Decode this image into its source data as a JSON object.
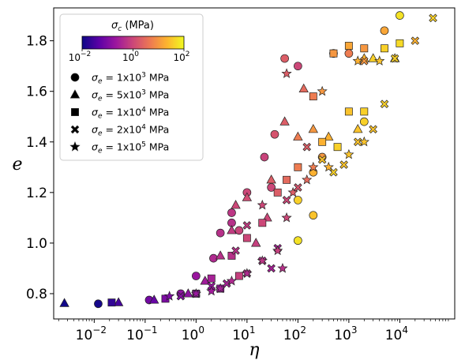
{
  "chart_data": {
    "type": "scatter",
    "title": "",
    "xlabel": "η",
    "ylabel": "e",
    "xscale": "log",
    "xlim": [
      0.0016,
      120000
    ],
    "ylim": [
      0.7,
      1.93
    ],
    "x_ticks": [
      {
        "value": 0.01,
        "label": "10",
        "exp": "−2"
      },
      {
        "value": 0.1,
        "label": "10",
        "exp": "−1"
      },
      {
        "value": 1,
        "label": "10",
        "exp": "0"
      },
      {
        "value": 10,
        "label": "10",
        "exp": "1"
      },
      {
        "value": 100,
        "label": "10",
        "exp": "2"
      },
      {
        "value": 1000,
        "label": "10",
        "exp": "3"
      },
      {
        "value": 10000,
        "label": "10",
        "exp": "4"
      }
    ],
    "y_ticks": [
      {
        "value": 0.8,
        "label": "0.8"
      },
      {
        "value": 1.0,
        "label": "1.0"
      },
      {
        "value": 1.2,
        "label": "1.2"
      },
      {
        "value": 1.4,
        "label": "1.4"
      },
      {
        "value": 1.6,
        "label": "1.6"
      },
      {
        "value": 1.8,
        "label": "1.8"
      }
    ],
    "grid": false,
    "legend_position": "top-left",
    "colorbar": {
      "title": "σ",
      "title_sub": "c",
      "title_unit": " (MPa)",
      "colormap": "plasma",
      "scale": "log",
      "range": [
        0.01,
        100
      ],
      "ticks": [
        {
          "value": 0.01,
          "label": "10",
          "exp": "−2"
        },
        {
          "value": 1,
          "label": "10",
          "exp": "0"
        },
        {
          "value": 100,
          "label": "10",
          "exp": "2"
        }
      ]
    },
    "colors": [
      "#0d0887",
      "#5c01a6",
      "#9c179e",
      "#cc4778",
      "#ed7953",
      "#fdb42f",
      "#f0f921"
    ],
    "series": [
      {
        "legend_prefix": "σ",
        "legend_sub": "e",
        "legend_value": " = 1x10",
        "legend_exp": "3",
        "legend_unit": " MPa",
        "marker": "circle",
        "points": [
          {
            "x": 0.012,
            "y": 0.76,
            "c": 0.012
          },
          {
            "x": 0.12,
            "y": 0.775,
            "c": 0.08
          },
          {
            "x": 0.5,
            "y": 0.8,
            "c": 0.15
          },
          {
            "x": 1,
            "y": 0.87,
            "c": 0.2
          },
          {
            "x": 2.2,
            "y": 0.94,
            "c": 0.4
          },
          {
            "x": 5,
            "y": 1.12,
            "c": 0.6
          },
          {
            "x": 7,
            "y": 1.05,
            "c": 0.9
          },
          {
            "x": 10,
            "y": 1.2,
            "c": 1
          },
          {
            "x": 5,
            "y": 1.08,
            "c": 0.5
          },
          {
            "x": 3,
            "y": 1.04,
            "c": 0.5
          },
          {
            "x": 22,
            "y": 1.34,
            "c": 0.9
          },
          {
            "x": 35,
            "y": 1.43,
            "c": 1.5
          },
          {
            "x": 55,
            "y": 1.73,
            "c": 2
          },
          {
            "x": 100,
            "y": 1.01,
            "c": 60
          },
          {
            "x": 100,
            "y": 1.17,
            "c": 40
          },
          {
            "x": 200,
            "y": 1.11,
            "c": 30
          },
          {
            "x": 200,
            "y": 1.28,
            "c": 20
          },
          {
            "x": 300,
            "y": 1.34,
            "c": 10
          },
          {
            "x": 500,
            "y": 1.75,
            "c": 5
          },
          {
            "x": 1000,
            "y": 1.75,
            "c": 5
          },
          {
            "x": 2000,
            "y": 1.48,
            "c": 40
          },
          {
            "x": 5000,
            "y": 1.84,
            "c": 15
          },
          {
            "x": 10000,
            "y": 1.9,
            "c": 60
          },
          {
            "x": 100,
            "y": 1.7,
            "c": 1
          },
          {
            "x": 30,
            "y": 1.22,
            "c": 1
          }
        ]
      },
      {
        "legend_prefix": "σ",
        "legend_sub": "e",
        "legend_value": " = 5x10",
        "legend_exp": "3",
        "legend_unit": " MPa",
        "marker": "triangle",
        "points": [
          {
            "x": 0.0026,
            "y": 0.762,
            "c": 0.011
          },
          {
            "x": 0.03,
            "y": 0.765,
            "c": 0.03
          },
          {
            "x": 0.15,
            "y": 0.775,
            "c": 0.06
          },
          {
            "x": 0.7,
            "y": 0.8,
            "c": 0.15
          },
          {
            "x": 1.5,
            "y": 0.85,
            "c": 0.25
          },
          {
            "x": 3,
            "y": 0.95,
            "c": 0.5
          },
          {
            "x": 5,
            "y": 1.05,
            "c": 0.7
          },
          {
            "x": 6,
            "y": 1.15,
            "c": 1
          },
          {
            "x": 10,
            "y": 1.18,
            "c": 1.2
          },
          {
            "x": 30,
            "y": 1.25,
            "c": 2
          },
          {
            "x": 55,
            "y": 1.48,
            "c": 2
          },
          {
            "x": 100,
            "y": 1.42,
            "c": 5
          },
          {
            "x": 130,
            "y": 1.61,
            "c": 3
          },
          {
            "x": 200,
            "y": 1.45,
            "c": 10
          },
          {
            "x": 400,
            "y": 1.42,
            "c": 20
          },
          {
            "x": 1500,
            "y": 1.45,
            "c": 30
          },
          {
            "x": 2000,
            "y": 1.73,
            "c": 20
          },
          {
            "x": 3000,
            "y": 1.73,
            "c": 40
          },
          {
            "x": 8000,
            "y": 1.73,
            "c": 30
          },
          {
            "x": 25,
            "y": 1.1,
            "c": 1
          },
          {
            "x": 15,
            "y": 1.0,
            "c": 0.8
          }
        ]
      },
      {
        "legend_prefix": "σ",
        "legend_sub": "e",
        "legend_value": " = 1x10",
        "legend_exp": "4",
        "legend_unit": " MPa",
        "marker": "square",
        "points": [
          {
            "x": 0.022,
            "y": 0.765,
            "c": 0.02
          },
          {
            "x": 0.25,
            "y": 0.78,
            "c": 0.1
          },
          {
            "x": 1,
            "y": 0.8,
            "c": 0.2
          },
          {
            "x": 2,
            "y": 0.86,
            "c": 0.3
          },
          {
            "x": 5,
            "y": 0.95,
            "c": 0.5
          },
          {
            "x": 10,
            "y": 1.02,
            "c": 1
          },
          {
            "x": 20,
            "y": 1.08,
            "c": 1
          },
          {
            "x": 40,
            "y": 1.2,
            "c": 2
          },
          {
            "x": 60,
            "y": 1.25,
            "c": 3
          },
          {
            "x": 100,
            "y": 1.3,
            "c": 5
          },
          {
            "x": 200,
            "y": 1.58,
            "c": 5
          },
          {
            "x": 300,
            "y": 1.4,
            "c": 20
          },
          {
            "x": 500,
            "y": 1.75,
            "c": 10
          },
          {
            "x": 1000,
            "y": 1.78,
            "c": 15
          },
          {
            "x": 2000,
            "y": 1.77,
            "c": 10
          },
          {
            "x": 2000,
            "y": 1.52,
            "c": 40
          },
          {
            "x": 10000,
            "y": 1.79,
            "c": 50
          },
          {
            "x": 5000,
            "y": 1.77,
            "c": 40
          },
          {
            "x": 1000,
            "y": 1.52,
            "c": 30
          },
          {
            "x": 600,
            "y": 1.38,
            "c": 40
          },
          {
            "x": 7,
            "y": 0.87,
            "c": 0.8
          },
          {
            "x": 3,
            "y": 0.82,
            "c": 0.2
          }
        ]
      },
      {
        "legend_prefix": "σ",
        "legend_sub": "e",
        "legend_value": " = 2x10",
        "legend_exp": "4",
        "legend_unit": " MPa",
        "marker": "x",
        "points": [
          {
            "x": 0.5,
            "y": 0.79,
            "c": 0.12
          },
          {
            "x": 1,
            "y": 0.8,
            "c": 0.15
          },
          {
            "x": 2,
            "y": 0.83,
            "c": 0.2
          },
          {
            "x": 4,
            "y": 0.84,
            "c": 0.3
          },
          {
            "x": 10,
            "y": 0.88,
            "c": 0.5
          },
          {
            "x": 20,
            "y": 0.93,
            "c": 0.4
          },
          {
            "x": 40,
            "y": 0.98,
            "c": 0.3
          },
          {
            "x": 60,
            "y": 1.17,
            "c": 1
          },
          {
            "x": 100,
            "y": 1.22,
            "c": 1.5
          },
          {
            "x": 150,
            "y": 1.38,
            "c": 2
          },
          {
            "x": 300,
            "y": 1.33,
            "c": 30
          },
          {
            "x": 500,
            "y": 1.28,
            "c": 40
          },
          {
            "x": 800,
            "y": 1.31,
            "c": 30
          },
          {
            "x": 1500,
            "y": 1.4,
            "c": 30
          },
          {
            "x": 3000,
            "y": 1.45,
            "c": 30
          },
          {
            "x": 5000,
            "y": 1.55,
            "c": 40
          },
          {
            "x": 20000,
            "y": 1.8,
            "c": 20
          },
          {
            "x": 45000,
            "y": 1.89,
            "c": 40
          },
          {
            "x": 8000,
            "y": 1.73,
            "c": 40
          },
          {
            "x": 2000,
            "y": 1.72,
            "c": 10
          },
          {
            "x": 10,
            "y": 1.07,
            "c": 0.7
          },
          {
            "x": 30,
            "y": 0.9,
            "c": 0.3
          },
          {
            "x": 6,
            "y": 0.97,
            "c": 0.5
          }
        ]
      },
      {
        "legend_prefix": "σ",
        "legend_sub": "e",
        "legend_value": " = 1x10",
        "legend_exp": "5",
        "legend_unit": " MPa",
        "marker": "star",
        "points": [
          {
            "x": 0.3,
            "y": 0.79,
            "c": 0.1
          },
          {
            "x": 1,
            "y": 0.8,
            "c": 0.2
          },
          {
            "x": 2,
            "y": 0.81,
            "c": 0.25
          },
          {
            "x": 3,
            "y": 0.82,
            "c": 0.3
          },
          {
            "x": 5,
            "y": 0.85,
            "c": 0.4
          },
          {
            "x": 10,
            "y": 0.88,
            "c": 0.4
          },
          {
            "x": 20,
            "y": 0.93,
            "c": 0.6
          },
          {
            "x": 40,
            "y": 0.97,
            "c": 0.8
          },
          {
            "x": 50,
            "y": 0.9,
            "c": 0.5
          },
          {
            "x": 60,
            "y": 1.1,
            "c": 1
          },
          {
            "x": 80,
            "y": 1.2,
            "c": 2
          },
          {
            "x": 150,
            "y": 1.25,
            "c": 3
          },
          {
            "x": 200,
            "y": 1.3,
            "c": 5
          },
          {
            "x": 400,
            "y": 1.3,
            "c": 20
          },
          {
            "x": 1000,
            "y": 1.35,
            "c": 30
          },
          {
            "x": 2000,
            "y": 1.4,
            "c": 30
          },
          {
            "x": 4000,
            "y": 1.72,
            "c": 30
          },
          {
            "x": 1500,
            "y": 1.72,
            "c": 20
          },
          {
            "x": 60,
            "y": 1.67,
            "c": 2
          },
          {
            "x": 300,
            "y": 1.6,
            "c": 10
          },
          {
            "x": 20,
            "y": 1.15,
            "c": 1
          }
        ]
      }
    ]
  }
}
